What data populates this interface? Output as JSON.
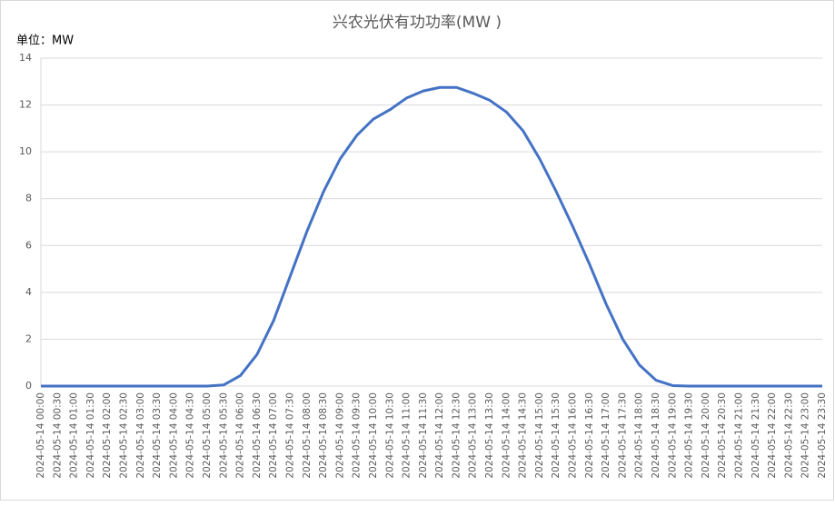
{
  "chart_data": {
    "type": "line",
    "title": "兴农光伏有功功率(MW )",
    "unit_label": "单位：MW",
    "categories": [
      "2024-05-14 00:00",
      "2024-05-14 00:30",
      "2024-05-14 01:00",
      "2024-05-14 01:30",
      "2024-05-14 02:00",
      "2024-05-14 02:30",
      "2024-05-14 03:00",
      "2024-05-14 03:30",
      "2024-05-14 04:00",
      "2024-05-14 04:30",
      "2024-05-14 05:00",
      "2024-05-14 05:30",
      "2024-05-14 06:00",
      "2024-05-14 06:30",
      "2024-05-14 07:00",
      "2024-05-14 07:30",
      "2024-05-14 08:00",
      "2024-05-14 08:30",
      "2024-05-14 09:00",
      "2024-05-14 09:30",
      "2024-05-14 10:00",
      "2024-05-14 10:30",
      "2024-05-14 11:00",
      "2024-05-14 11:30",
      "2024-05-14 12:00",
      "2024-05-14 12:30",
      "2024-05-14 13:00",
      "2024-05-14 13:30",
      "2024-05-14 14:00",
      "2024-05-14 14:30",
      "2024-05-14 15:00",
      "2024-05-14 15:30",
      "2024-05-14 16:00",
      "2024-05-14 16:30",
      "2024-05-14 17:00",
      "2024-05-14 17:30",
      "2024-05-14 18:00",
      "2024-05-14 18:30",
      "2024-05-14 19:00",
      "2024-05-14 19:30",
      "2024-05-14 20:00",
      "2024-05-14 20:30",
      "2024-05-14 21:00",
      "2024-05-14 21:30",
      "2024-05-14 22:00",
      "2024-05-14 22:30",
      "2024-05-14 23:00",
      "2024-05-14 23:30"
    ],
    "values": [
      0,
      0,
      0,
      0,
      0,
      0,
      0,
      0,
      0,
      0,
      0,
      0.05,
      0.45,
      1.35,
      2.8,
      4.7,
      6.6,
      8.3,
      9.7,
      10.7,
      11.4,
      11.8,
      12.3,
      12.6,
      12.75,
      12.75,
      12.5,
      12.2,
      11.7,
      10.9,
      9.7,
      8.3,
      6.8,
      5.2,
      3.5,
      2.0,
      0.9,
      0.25,
      0.02,
      0,
      0,
      0,
      0,
      0,
      0,
      0,
      0,
      0
    ],
    "color": "#4472c4",
    "ylim": [
      0,
      14
    ],
    "yticks": [
      0,
      2,
      4,
      6,
      8,
      10,
      12,
      14
    ],
    "grid": true
  }
}
